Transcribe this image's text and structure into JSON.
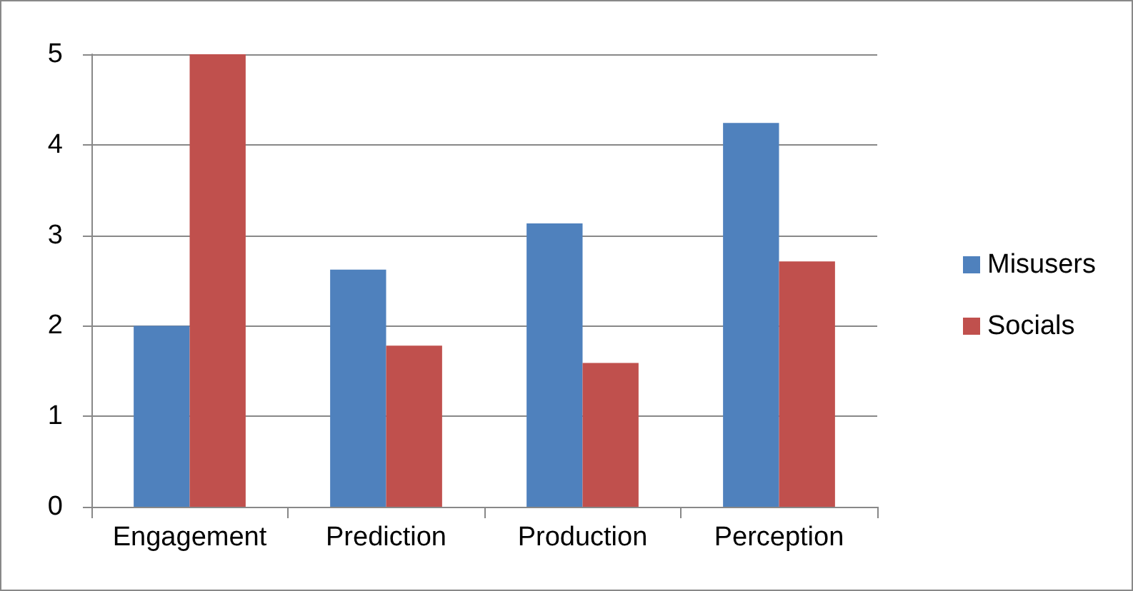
{
  "chart_data": {
    "type": "bar",
    "categories": [
      "Engagement",
      "Prediction",
      "Production",
      "Perception"
    ],
    "series": [
      {
        "name": "Misusers",
        "color": "#4f81bd",
        "values": [
          2.0,
          2.62,
          3.13,
          4.24
        ]
      },
      {
        "name": "Socials",
        "color": "#c0504d",
        "values": [
          5.0,
          1.78,
          1.59,
          2.71
        ]
      }
    ],
    "ylim": [
      0,
      5
    ],
    "yticks": [
      0,
      1,
      2,
      3,
      4,
      5
    ],
    "grid": "y",
    "legend": "right"
  }
}
